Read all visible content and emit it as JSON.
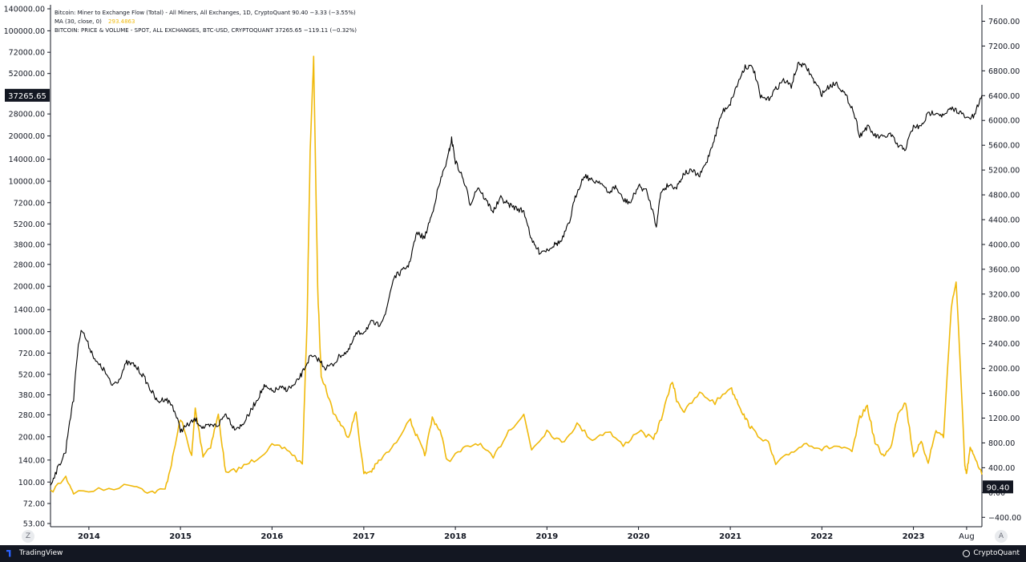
{
  "legend": {
    "line1": "Bitcoin: Miner to Exchange Flow (Total) - All Miners, All Exchanges, 1D, CryptoQuant  90.40  −3.33 (−3.55%)",
    "line2_label": "MA (30, close, 0)",
    "line2_value": "293.4863",
    "line3": "BITCOIN: PRICE & VOLUME - SPOT, ALL EXCHANGES, BTC-USD, CRYPTOQUANT  37265.65  −119.11 (−0.32%)"
  },
  "footer": {
    "left_brand": "TradingView",
    "right_brand": "CryptoQuant"
  },
  "corner_buttons": {
    "left": "Z",
    "right": "A"
  },
  "colors": {
    "price_line": "#000000",
    "flow_ma_line": "#f0b90b",
    "last_badge_bg": "#131722",
    "footer_bg": "#131722"
  },
  "chart_data": {
    "type": "line",
    "x_range": [
      "2013-08-01",
      "2023-10-01"
    ],
    "x_ticks": [
      "2014",
      "2015",
      "2016",
      "2017",
      "2018",
      "2019",
      "2020",
      "2021",
      "2022",
      "2023",
      "Aug"
    ],
    "left_axis": {
      "scale": "log",
      "range": [
        53,
        140000
      ],
      "ticks": [
        "140000.00",
        "100000.00",
        "72000.00",
        "52000.00",
        "28000.00",
        "20000.00",
        "14000.00",
        "10000.00",
        "7200.00",
        "5200.00",
        "3800.00",
        "2800.00",
        "2000.00",
        "1400.00",
        "1000.00",
        "720.00",
        "520.00",
        "380.00",
        "280.00",
        "200.00",
        "140.00",
        "100.00",
        "72.00",
        "53.00"
      ],
      "last_value_label": "37265.65"
    },
    "right_axis": {
      "scale": "linear",
      "range": [
        -500,
        7800
      ],
      "ticks": [
        "7600.00",
        "7200.00",
        "6800.00",
        "6400.00",
        "6000.00",
        "5600.00",
        "5200.00",
        "4800.00",
        "4400.00",
        "4000.00",
        "3600.00",
        "3200.00",
        "2800.00",
        "2400.00",
        "2000.00",
        "1600.00",
        "1200.00",
        "800.00",
        "400.00",
        "0.00",
        "−400.00"
      ],
      "last_value_label": "90.40"
    },
    "series": [
      {
        "name": "BITCOIN: PRICE & VOLUME - SPOT, ALL EXCHANGES, BTC-USD",
        "axis": "left",
        "points": [
          [
            "2013-08-01",
            96
          ],
          [
            "2013-09-01",
            125
          ],
          [
            "2013-10-01",
            160
          ],
          [
            "2013-11-01",
            350
          ],
          [
            "2013-12-01",
            1050
          ],
          [
            "2014-01-01",
            800
          ],
          [
            "2014-02-01",
            620
          ],
          [
            "2014-03-01",
            560
          ],
          [
            "2014-04-01",
            440
          ],
          [
            "2014-05-01",
            480
          ],
          [
            "2014-06-01",
            620
          ],
          [
            "2014-07-01",
            600
          ],
          [
            "2014-08-01",
            520
          ],
          [
            "2014-09-01",
            420
          ],
          [
            "2014-10-01",
            340
          ],
          [
            "2014-11-01",
            360
          ],
          [
            "2014-12-01",
            320
          ],
          [
            "2015-01-01",
            220
          ],
          [
            "2015-02-01",
            240
          ],
          [
            "2015-03-01",
            260
          ],
          [
            "2015-04-01",
            230
          ],
          [
            "2015-05-01",
            235
          ],
          [
            "2015-06-01",
            240
          ],
          [
            "2015-07-01",
            285
          ],
          [
            "2015-08-01",
            230
          ],
          [
            "2015-09-01",
            235
          ],
          [
            "2015-10-01",
            280
          ],
          [
            "2015-11-01",
            350
          ],
          [
            "2015-12-01",
            430
          ],
          [
            "2016-01-01",
            400
          ],
          [
            "2016-02-01",
            420
          ],
          [
            "2016-03-01",
            415
          ],
          [
            "2016-04-01",
            440
          ],
          [
            "2016-05-01",
            530
          ],
          [
            "2016-06-01",
            680
          ],
          [
            "2016-07-01",
            660
          ],
          [
            "2016-08-01",
            575
          ],
          [
            "2016-09-01",
            605
          ],
          [
            "2016-10-01",
            700
          ],
          [
            "2016-11-01",
            740
          ],
          [
            "2016-12-01",
            960
          ],
          [
            "2017-01-01",
            1000
          ],
          [
            "2017-02-01",
            1150
          ],
          [
            "2017-03-01",
            1100
          ],
          [
            "2017-04-01",
            1350
          ],
          [
            "2017-05-01",
            2300
          ],
          [
            "2017-06-01",
            2500
          ],
          [
            "2017-07-01",
            2800
          ],
          [
            "2017-08-01",
            4500
          ],
          [
            "2017-09-01",
            4200
          ],
          [
            "2017-10-01",
            6100
          ],
          [
            "2017-11-01",
            9800
          ],
          [
            "2017-12-01",
            14000
          ],
          [
            "2017-12-17",
            19000
          ],
          [
            "2018-01-01",
            13500
          ],
          [
            "2018-02-01",
            10300
          ],
          [
            "2018-03-01",
            7000
          ],
          [
            "2018-04-01",
            9200
          ],
          [
            "2018-05-01",
            7500
          ],
          [
            "2018-06-01",
            6300
          ],
          [
            "2018-07-01",
            7700
          ],
          [
            "2018-08-01",
            7000
          ],
          [
            "2018-09-01",
            6600
          ],
          [
            "2018-10-01",
            6300
          ],
          [
            "2018-11-01",
            4000
          ],
          [
            "2018-12-01",
            3400
          ],
          [
            "2019-01-01",
            3500
          ],
          [
            "2019-02-01",
            3800
          ],
          [
            "2019-03-01",
            4000
          ],
          [
            "2019-04-01",
            5300
          ],
          [
            "2019-05-01",
            8500
          ],
          [
            "2019-06-01",
            11000
          ],
          [
            "2019-07-01",
            10000
          ],
          [
            "2019-08-01",
            10000
          ],
          [
            "2019-09-01",
            8300
          ],
          [
            "2019-10-01",
            9200
          ],
          [
            "2019-11-01",
            7500
          ],
          [
            "2019-12-01",
            7200
          ],
          [
            "2020-01-01",
            9300
          ],
          [
            "2020-02-01",
            8600
          ],
          [
            "2020-03-12",
            5000
          ],
          [
            "2020-04-01",
            8600
          ],
          [
            "2020-05-01",
            9500
          ],
          [
            "2020-06-01",
            9100
          ],
          [
            "2020-07-01",
            11300
          ],
          [
            "2020-08-01",
            11700
          ],
          [
            "2020-09-01",
            10800
          ],
          [
            "2020-10-01",
            13700
          ],
          [
            "2020-11-01",
            19600
          ],
          [
            "2020-12-01",
            29000
          ],
          [
            "2021-01-01",
            33000
          ],
          [
            "2021-02-01",
            45000
          ],
          [
            "2021-03-01",
            58000
          ],
          [
            "2021-04-01",
            57000
          ],
          [
            "2021-05-01",
            36000
          ],
          [
            "2021-06-01",
            35000
          ],
          [
            "2021-07-01",
            41000
          ],
          [
            "2021-08-01",
            47000
          ],
          [
            "2021-09-01",
            43000
          ],
          [
            "2021-10-01",
            61000
          ],
          [
            "2021-11-01",
            57000
          ],
          [
            "2021-12-01",
            46000
          ],
          [
            "2022-01-01",
            38000
          ],
          [
            "2022-02-01",
            43000
          ],
          [
            "2022-03-01",
            45000
          ],
          [
            "2022-04-01",
            38000
          ],
          [
            "2022-05-01",
            31000
          ],
          [
            "2022-06-01",
            20000
          ],
          [
            "2022-07-01",
            23000
          ],
          [
            "2022-08-01",
            20000
          ],
          [
            "2022-09-01",
            19500
          ],
          [
            "2022-10-01",
            20500
          ],
          [
            "2022-11-01",
            17000
          ],
          [
            "2022-12-01",
            16500
          ],
          [
            "2023-01-01",
            23000
          ],
          [
            "2023-02-01",
            23000
          ],
          [
            "2023-03-01",
            28000
          ],
          [
            "2023-04-01",
            29000
          ],
          [
            "2023-05-01",
            27000
          ],
          [
            "2023-06-01",
            30400
          ],
          [
            "2023-07-01",
            29200
          ],
          [
            "2023-08-01",
            26000
          ],
          [
            "2023-09-01",
            27000
          ],
          [
            "2023-10-01",
            37265.65
          ]
        ]
      },
      {
        "name": "MA (30, close, 0)",
        "axis": "right",
        "points": [
          [
            "2013-08-01",
            0
          ],
          [
            "2013-10-01",
            250
          ],
          [
            "2013-11-01",
            0
          ],
          [
            "2014-03-01",
            50
          ],
          [
            "2014-07-01",
            130
          ],
          [
            "2014-09-01",
            0
          ],
          [
            "2014-11-01",
            50
          ],
          [
            "2014-12-01",
            550
          ],
          [
            "2015-01-01",
            1200
          ],
          [
            "2015-02-15",
            600
          ],
          [
            "2015-03-01",
            1350
          ],
          [
            "2015-04-01",
            600
          ],
          [
            "2015-05-01",
            750
          ],
          [
            "2015-06-01",
            1250
          ],
          [
            "2015-07-01",
            300
          ],
          [
            "2015-09-01",
            400
          ],
          [
            "2015-11-01",
            550
          ],
          [
            "2016-01-01",
            750
          ],
          [
            "2016-03-01",
            700
          ],
          [
            "2016-05-01",
            450
          ],
          [
            "2016-05-20",
            2800
          ],
          [
            "2016-06-01",
            5500
          ],
          [
            "2016-06-15",
            7000
          ],
          [
            "2016-07-01",
            3300
          ],
          [
            "2016-07-15",
            1900
          ],
          [
            "2016-08-01",
            1700
          ],
          [
            "2016-09-01",
            1300
          ],
          [
            "2016-10-01",
            1100
          ],
          [
            "2016-11-01",
            900
          ],
          [
            "2016-12-01",
            1300
          ],
          [
            "2017-01-01",
            300
          ],
          [
            "2017-02-01",
            350
          ],
          [
            "2017-03-01",
            500
          ],
          [
            "2017-05-01",
            750
          ],
          [
            "2017-07-01",
            1200
          ],
          [
            "2017-08-01",
            900
          ],
          [
            "2017-09-01",
            600
          ],
          [
            "2017-10-01",
            1200
          ],
          [
            "2017-11-01",
            1000
          ],
          [
            "2017-12-01",
            500
          ],
          [
            "2018-02-01",
            700
          ],
          [
            "2018-04-01",
            800
          ],
          [
            "2018-06-01",
            550
          ],
          [
            "2018-08-01",
            1000
          ],
          [
            "2018-10-01",
            1250
          ],
          [
            "2018-11-01",
            700
          ],
          [
            "2019-01-01",
            1000
          ],
          [
            "2019-03-01",
            800
          ],
          [
            "2019-05-01",
            1100
          ],
          [
            "2019-07-01",
            850
          ],
          [
            "2019-09-01",
            1000
          ],
          [
            "2019-11-01",
            750
          ],
          [
            "2020-01-01",
            1000
          ],
          [
            "2020-03-01",
            850
          ],
          [
            "2020-04-01",
            1200
          ],
          [
            "2020-05-15",
            1800
          ],
          [
            "2020-06-01",
            1500
          ],
          [
            "2020-07-01",
            1300
          ],
          [
            "2020-09-01",
            1600
          ],
          [
            "2020-11-01",
            1450
          ],
          [
            "2021-01-01",
            1700
          ],
          [
            "2021-02-01",
            1450
          ],
          [
            "2021-03-01",
            1200
          ],
          [
            "2021-04-01",
            1000
          ],
          [
            "2021-06-01",
            800
          ],
          [
            "2021-07-01",
            450
          ],
          [
            "2021-09-01",
            650
          ],
          [
            "2021-11-01",
            800
          ],
          [
            "2022-01-01",
            700
          ],
          [
            "2022-03-01",
            750
          ],
          [
            "2022-05-01",
            650
          ],
          [
            "2022-06-01",
            1200
          ],
          [
            "2022-07-01",
            1400
          ],
          [
            "2022-08-01",
            800
          ],
          [
            "2022-09-01",
            600
          ],
          [
            "2022-10-01",
            700
          ],
          [
            "2022-11-01",
            1300
          ],
          [
            "2022-12-01",
            1450
          ],
          [
            "2023-01-01",
            600
          ],
          [
            "2023-02-01",
            800
          ],
          [
            "2023-03-01",
            500
          ],
          [
            "2023-04-01",
            1000
          ],
          [
            "2023-05-01",
            900
          ],
          [
            "2023-06-01",
            3000
          ],
          [
            "2023-06-20",
            3400
          ],
          [
            "2023-07-10",
            1800
          ],
          [
            "2023-07-25",
            400
          ],
          [
            "2023-08-01",
            300
          ],
          [
            "2023-08-15",
            700
          ],
          [
            "2023-09-01",
            600
          ],
          [
            "2023-10-01",
            290
          ]
        ]
      }
    ],
    "grid": false,
    "legend_position": "top-left"
  }
}
